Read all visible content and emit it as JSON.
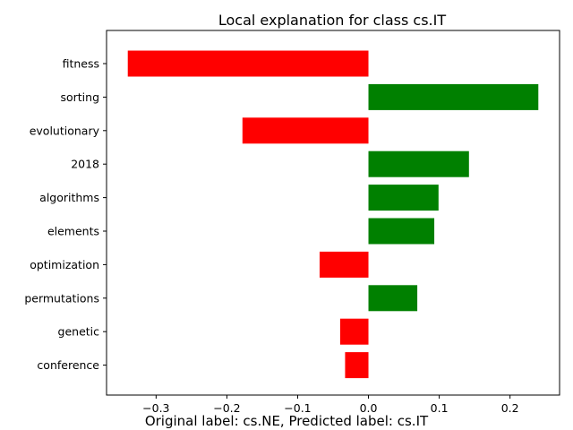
{
  "chart_data": {
    "type": "bar",
    "orientation": "horizontal",
    "title": "Local explanation for class cs.IT",
    "caption": "Original label: cs.NE, Predicted label: cs.IT",
    "xlabel": "",
    "ylabel": "",
    "categories": [
      "fitness",
      "sorting",
      "evolutionary",
      "2018",
      "algorithms",
      "elements",
      "optimization",
      "permutations",
      "genetic",
      "conference"
    ],
    "values": [
      -0.34,
      0.24,
      -0.178,
      0.142,
      0.099,
      0.093,
      -0.069,
      0.069,
      -0.04,
      -0.033
    ],
    "xlim": [
      -0.37,
      0.27
    ],
    "xticks": [
      -0.3,
      -0.2,
      -0.1,
      0.0,
      0.1,
      0.2
    ],
    "xtick_labels": [
      "−0.3",
      "−0.2",
      "−0.1",
      "0.0",
      "0.1",
      "0.2"
    ],
    "positive_color": "#008000",
    "negative_color": "#ff0000",
    "grid": false,
    "legend": false
  }
}
